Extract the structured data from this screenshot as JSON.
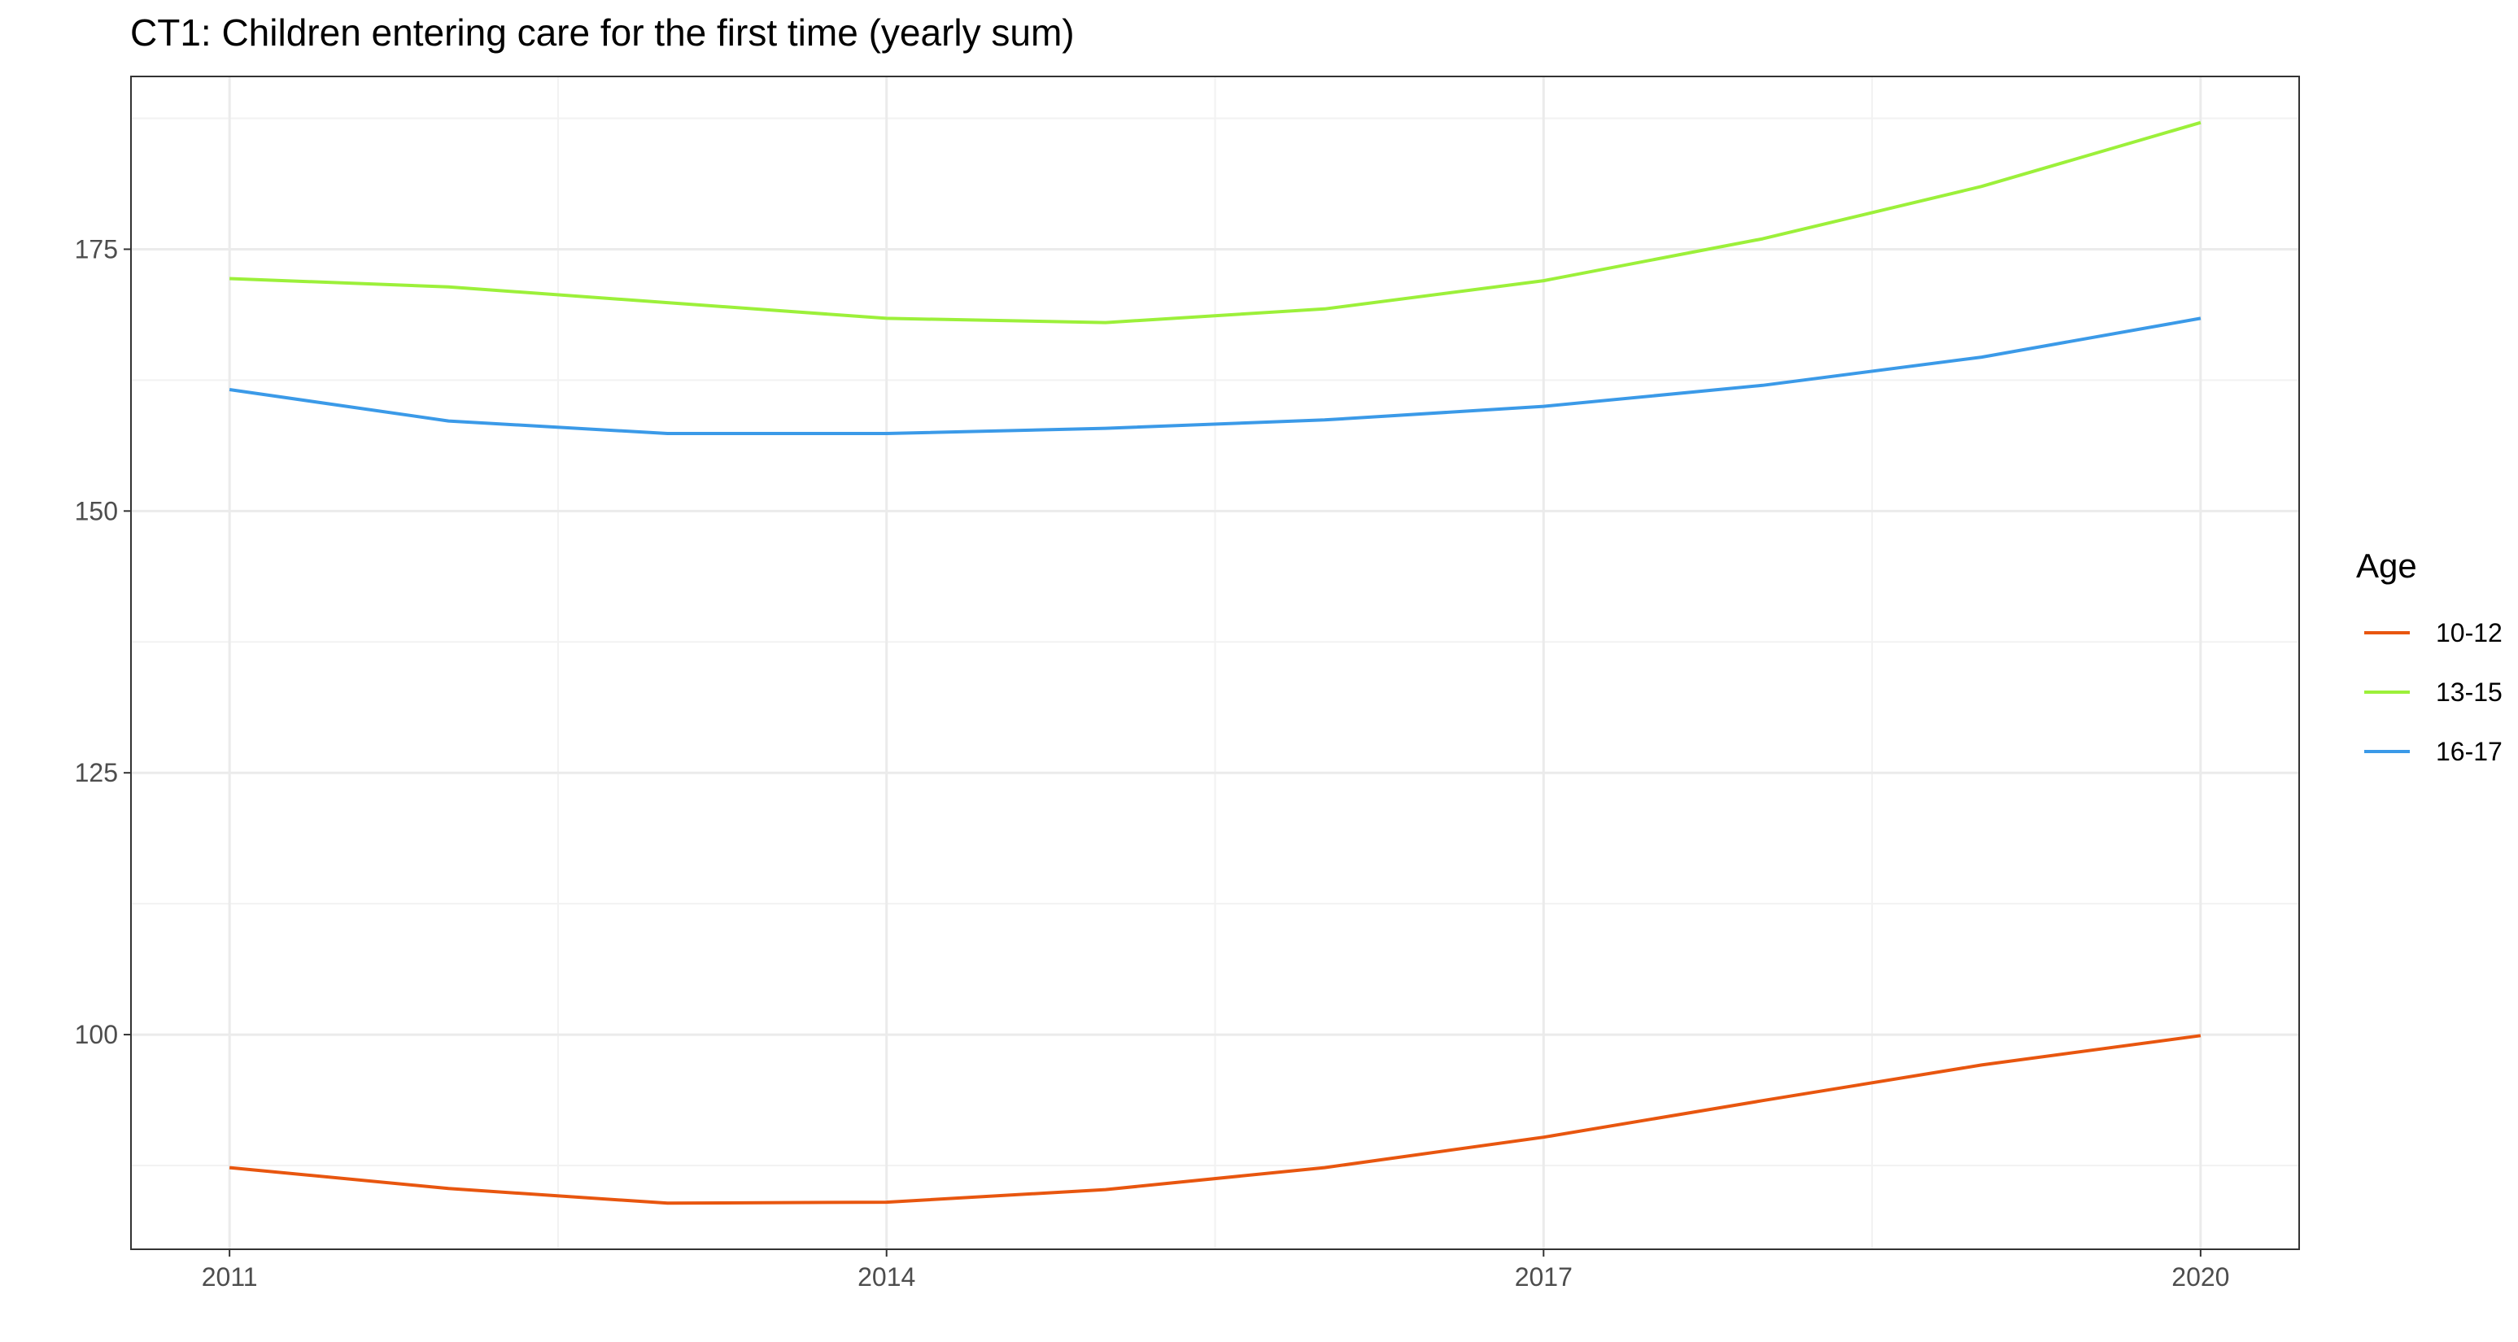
{
  "chart_data": {
    "type": "line",
    "title": "CT1: Children entering care for the first time (yearly sum)",
    "xlabel": "",
    "ylabel": "",
    "x": [
      2011,
      2012,
      2013,
      2014,
      2015,
      2016,
      2017,
      2018,
      2019,
      2020
    ],
    "xticks": [
      2011,
      2014,
      2017,
      2020
    ],
    "xlim": [
      2010.55,
      2020.45
    ],
    "yticks": [
      100,
      125,
      150,
      175
    ],
    "ylim": [
      79.5,
      191.5
    ],
    "grid": true,
    "legend": {
      "title": "Age",
      "position": "right"
    },
    "series": [
      {
        "name": "10-12",
        "color": "#E8560F",
        "values": [
          87.3,
          85.3,
          83.9,
          84.0,
          85.2,
          87.3,
          90.2,
          93.7,
          97.1,
          99.9
        ]
      },
      {
        "name": "13-15",
        "color": "#9CF03A",
        "values": [
          172.2,
          171.4,
          169.9,
          168.4,
          168.0,
          169.3,
          172.0,
          176.0,
          181.0,
          187.1
        ]
      },
      {
        "name": "16-17",
        "color": "#3B9AE8",
        "values": [
          161.6,
          158.6,
          157.4,
          157.4,
          157.9,
          158.7,
          160.0,
          162.0,
          164.7,
          168.4
        ]
      }
    ]
  }
}
